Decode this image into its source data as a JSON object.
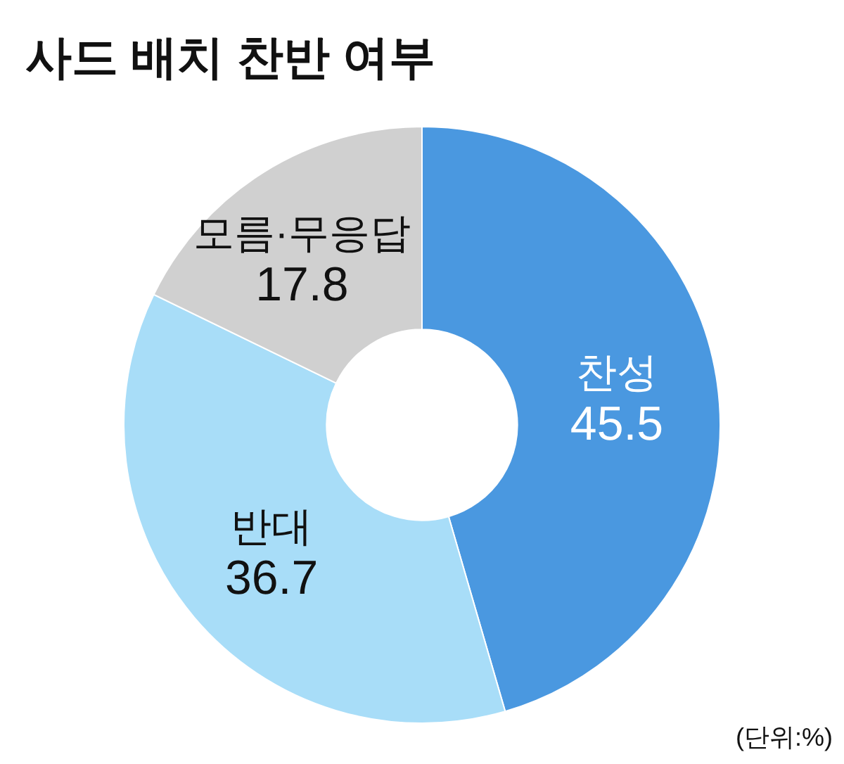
{
  "chart_data": {
    "type": "donut",
    "title": "사드 배치 찬반 여부",
    "categories": [
      "찬성",
      "반대",
      "모름·무응답"
    ],
    "values": [
      45.5,
      36.7,
      17.8
    ],
    "colors": [
      "#4a98e0",
      "#a8ddf8",
      "#d0d0d0"
    ],
    "data_labels": true,
    "annotations": [
      "(단위:%)"
    ]
  }
}
